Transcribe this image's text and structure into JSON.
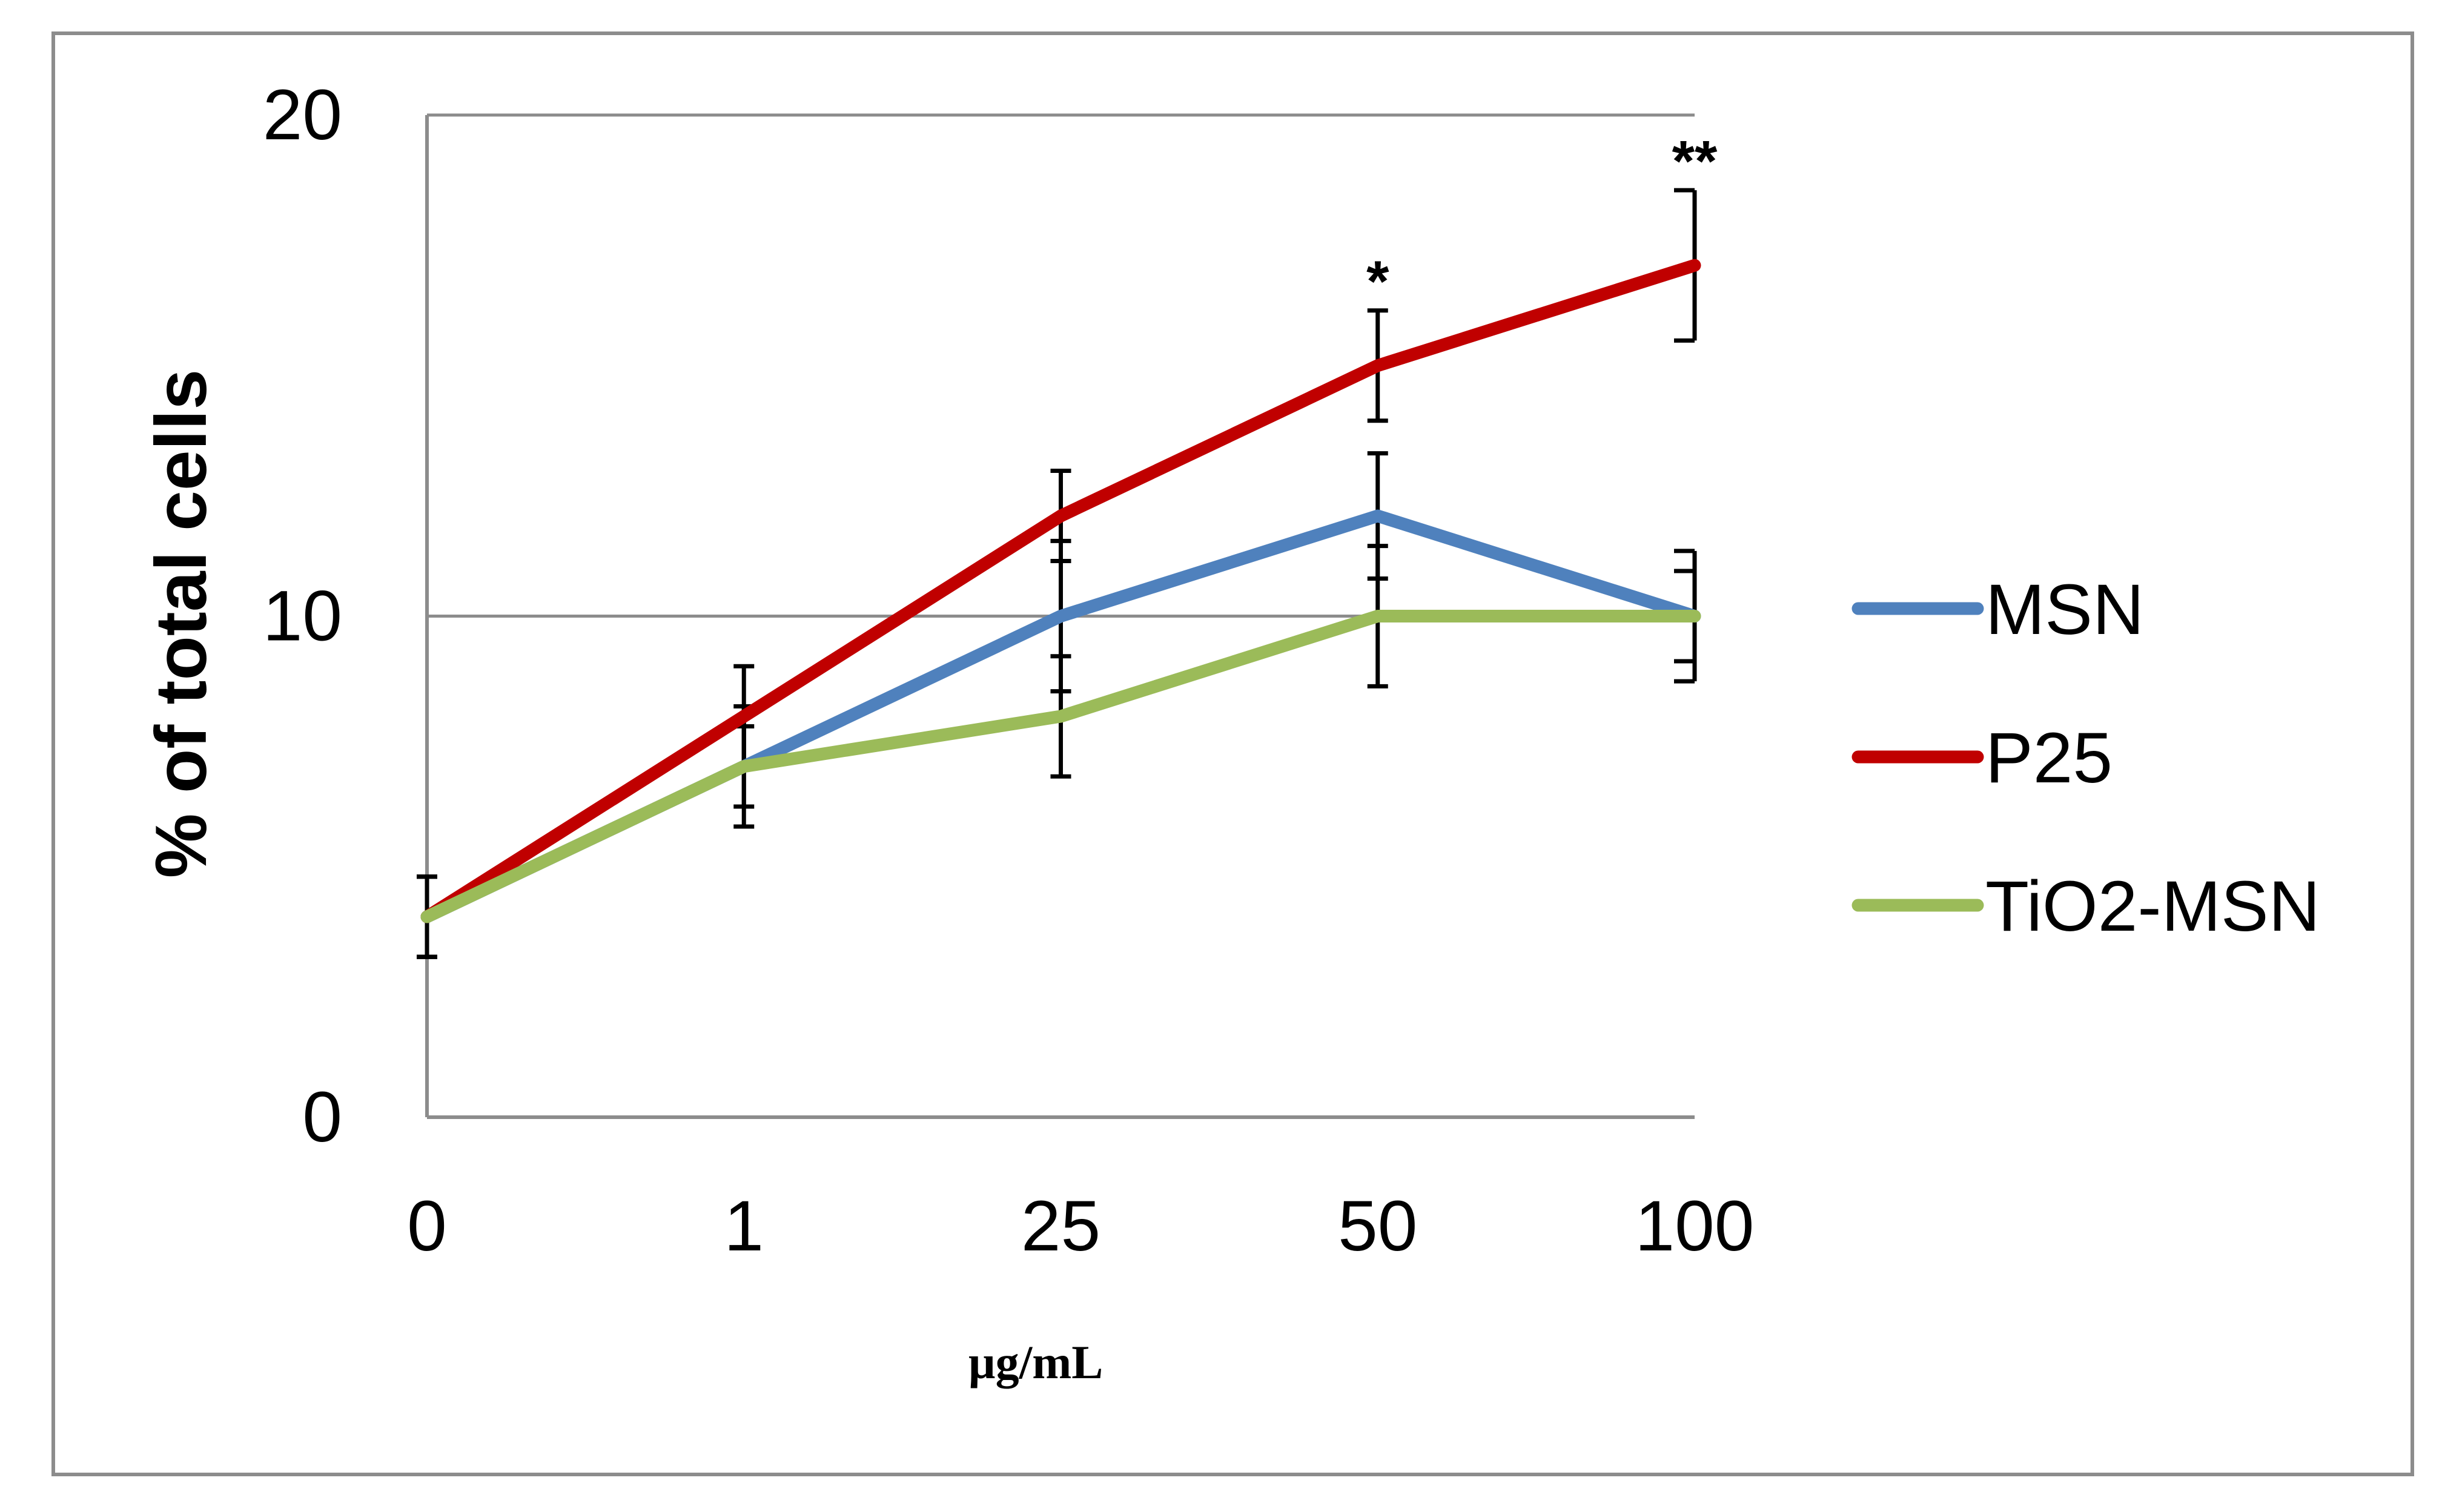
{
  "chart_data": {
    "type": "line",
    "title": "",
    "xlabel": "µg/mL",
    "ylabel": "% of total cells",
    "categories": [
      "0",
      "1",
      "25",
      "50",
      "100"
    ],
    "ylim": [
      0,
      20
    ],
    "yticks": [
      0,
      10,
      20
    ],
    "grid": true,
    "legend_position": "right",
    "series": [
      {
        "name": "MSN",
        "color": "#4f81bd",
        "values": [
          4,
          7,
          10,
          12,
          10
        ],
        "errors": [
          0.8,
          1.2,
          1.5,
          1.25,
          1.3
        ]
      },
      {
        "name": "P25",
        "color": "#c00000",
        "values": [
          4,
          8,
          12,
          15,
          17
        ],
        "errors": [
          0.8,
          1.0,
          0.9,
          1.1,
          1.5
        ]
      },
      {
        "name": "TiO2-MSN",
        "color": "#9bbb59",
        "values": [
          4,
          7,
          8,
          10,
          10
        ],
        "errors": [
          0.8,
          0.8,
          1.2,
          1.4,
          0.9
        ]
      }
    ],
    "annotations": [
      {
        "category": "50",
        "text": "*"
      },
      {
        "category": "100",
        "text": "**"
      }
    ]
  }
}
